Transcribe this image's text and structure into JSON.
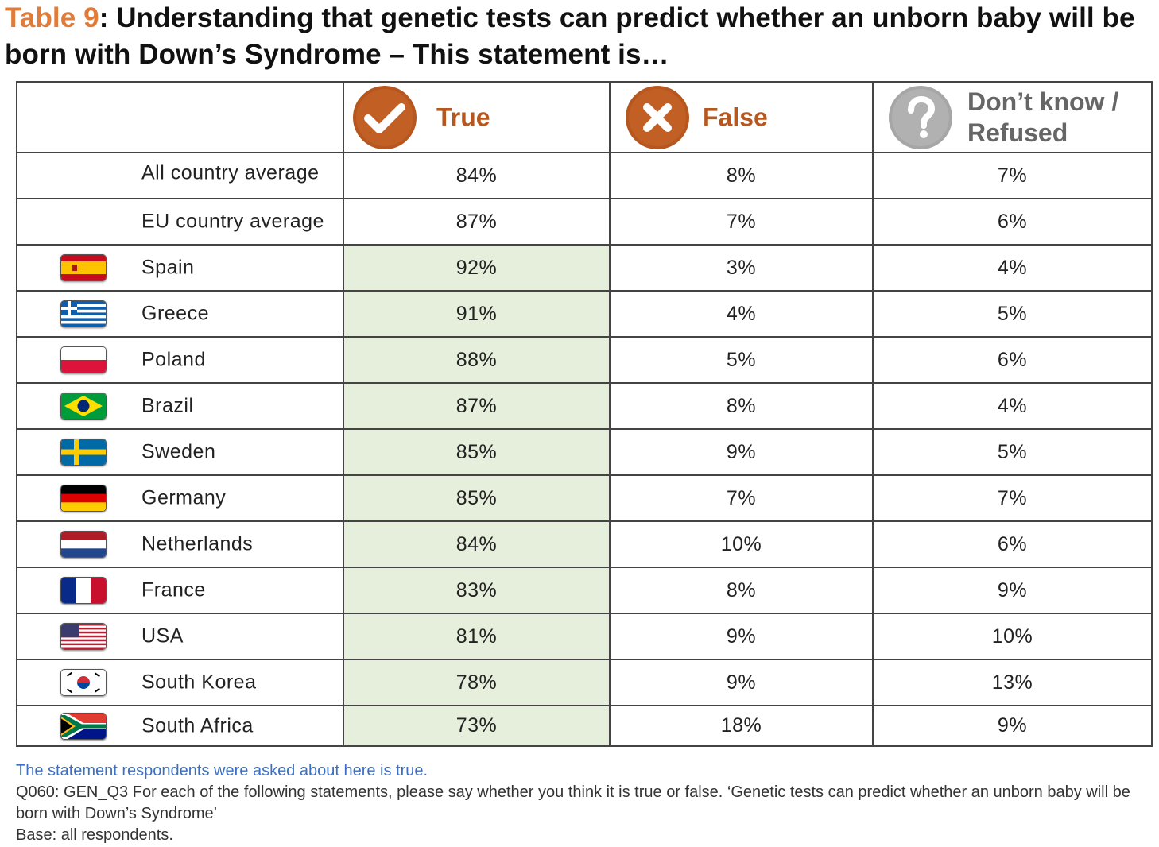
{
  "title": {
    "number": "Table 9",
    "text": ": Understanding that genetic tests can predict whether an unborn baby will be born with Down’s Syndrome – This statement is…"
  },
  "headers": {
    "true": "True",
    "false": "False",
    "dk_line1": "Don’t know /",
    "dk_line2": "Refused"
  },
  "colors": {
    "title_accent": "#e07b39",
    "icon_orange": "#b5571f",
    "icon_grey": "#a6a6a6",
    "true_column_fill": "#e6efdc",
    "note_blue": "#3a6fc4"
  },
  "rows": [
    {
      "label": "All country average",
      "flag": null,
      "true": "84%",
      "false": "8%",
      "dk": "7%"
    },
    {
      "label": "EU country average",
      "flag": null,
      "true": "87%",
      "false": "7%",
      "dk": "6%"
    },
    {
      "label": "Spain",
      "flag": "spain-flag-icon",
      "true": "92%",
      "false": "3%",
      "dk": "4%"
    },
    {
      "label": "Greece",
      "flag": "greece-flag-icon",
      "true": "91%",
      "false": "4%",
      "dk": "5%"
    },
    {
      "label": "Poland",
      "flag": "poland-flag-icon",
      "true": "88%",
      "false": "5%",
      "dk": "6%"
    },
    {
      "label": "Brazil",
      "flag": "brazil-flag-icon",
      "true": "87%",
      "false": "8%",
      "dk": "4%"
    },
    {
      "label": "Sweden",
      "flag": "sweden-flag-icon",
      "true": "85%",
      "false": "9%",
      "dk": "5%"
    },
    {
      "label": "Germany",
      "flag": "germany-flag-icon",
      "true": "85%",
      "false": "7%",
      "dk": "7%"
    },
    {
      "label": "Netherlands",
      "flag": "netherlands-flag-icon",
      "true": "84%",
      "false": "10%",
      "dk": "6%"
    },
    {
      "label": "France",
      "flag": "france-flag-icon",
      "true": "83%",
      "false": "8%",
      "dk": "9%"
    },
    {
      "label": "USA",
      "flag": "usa-flag-icon",
      "true": "81%",
      "false": "9%",
      "dk": "10%"
    },
    {
      "label": "South Korea",
      "flag": "south-korea-flag-icon",
      "true": "78%",
      "false": "9%",
      "dk": "13%"
    },
    {
      "label": "South Africa",
      "flag": "south-africa-flag-icon",
      "true": "73%",
      "false": "18%",
      "dk": "9%"
    }
  ],
  "notes": {
    "truth": "The statement respondents were asked about here is true.",
    "question": "Q060: GEN_Q3 For each of the following statements, please say whether you think it is true or false. ‘Genetic tests can predict whether an unborn baby will be born with Down’s Syndrome’",
    "base": "Base: all respondents."
  }
}
